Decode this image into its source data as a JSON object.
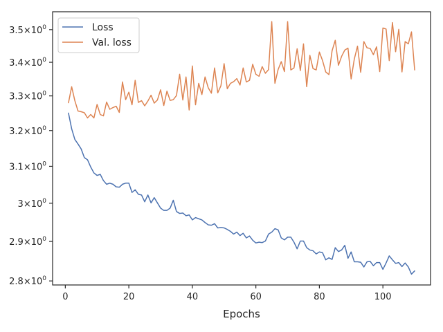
{
  "chart_data": {
    "type": "line",
    "title": "",
    "xlabel": "Epochs",
    "ylabel": "",
    "xlim": [
      -4,
      115
    ],
    "ylim": [
      2.79,
      3.556
    ],
    "y_scale": "log",
    "grid": false,
    "legend": "top-left",
    "x_ticks": [
      0,
      20,
      40,
      60,
      80,
      100
    ],
    "x_tick_labels": [
      "0",
      "20",
      "40",
      "60",
      "80",
      "100"
    ],
    "y_ticks": [
      2.8,
      2.9,
      3.0,
      3.1,
      3.2,
      3.3,
      3.4,
      3.5
    ],
    "y_tick_labels": [
      {
        "mantissa": "2.8",
        "base": "10",
        "exp": "0"
      },
      {
        "mantissa": "2.9",
        "base": "10",
        "exp": "0"
      },
      {
        "mantissa": "3",
        "base": "10",
        "exp": "0"
      },
      {
        "mantissa": "3.1",
        "base": "10",
        "exp": "0"
      },
      {
        "mantissa": "3.2",
        "base": "10",
        "exp": "0"
      },
      {
        "mantissa": "3.3",
        "base": "10",
        "exp": "0"
      },
      {
        "mantissa": "3.4",
        "base": "10",
        "exp": "0"
      },
      {
        "mantissa": "3.5",
        "base": "10",
        "exp": "0"
      }
    ],
    "x": [
      1,
      2,
      3,
      4,
      5,
      6,
      7,
      8,
      9,
      10,
      11,
      12,
      13,
      14,
      15,
      16,
      17,
      18,
      19,
      20,
      21,
      22,
      23,
      24,
      25,
      26,
      27,
      28,
      29,
      30,
      31,
      32,
      33,
      34,
      35,
      36,
      37,
      38,
      39,
      40,
      41,
      42,
      43,
      44,
      45,
      46,
      47,
      48,
      49,
      50,
      51,
      52,
      53,
      54,
      55,
      56,
      57,
      58,
      59,
      60,
      61,
      62,
      63,
      64,
      65,
      66,
      67,
      68,
      69,
      70,
      71,
      72,
      73,
      74,
      75,
      76,
      77,
      78,
      79,
      80,
      81,
      82,
      83,
      84,
      85,
      86,
      87,
      88,
      89,
      90,
      91,
      92,
      93,
      94,
      95,
      96,
      97,
      98,
      99,
      100,
      101,
      102,
      103,
      104,
      105,
      106,
      107,
      108,
      109,
      110
    ],
    "series": [
      {
        "name": "Loss",
        "color": "#4c72b0",
        "values": [
          3.25,
          3.205,
          3.175,
          3.162,
          3.148,
          3.124,
          3.118,
          3.098,
          3.082,
          3.075,
          3.078,
          3.061,
          3.051,
          3.054,
          3.051,
          3.044,
          3.043,
          3.051,
          3.054,
          3.054,
          3.029,
          3.036,
          3.024,
          3.022,
          3.004,
          3.022,
          3.001,
          3.015,
          3.001,
          2.987,
          2.981,
          2.981,
          2.987,
          3.008,
          2.978,
          2.973,
          2.974,
          2.967,
          2.969,
          2.956,
          2.962,
          2.959,
          2.956,
          2.949,
          2.943,
          2.942,
          2.946,
          2.935,
          2.936,
          2.935,
          2.931,
          2.926,
          2.919,
          2.924,
          2.915,
          2.921,
          2.909,
          2.914,
          2.903,
          2.896,
          2.898,
          2.897,
          2.901,
          2.919,
          2.924,
          2.933,
          2.93,
          2.909,
          2.904,
          2.911,
          2.911,
          2.898,
          2.881,
          2.901,
          2.901,
          2.884,
          2.878,
          2.876,
          2.868,
          2.873,
          2.871,
          2.853,
          2.858,
          2.854,
          2.884,
          2.874,
          2.878,
          2.89,
          2.857,
          2.873,
          2.848,
          2.848,
          2.847,
          2.835,
          2.848,
          2.849,
          2.838,
          2.846,
          2.846,
          2.829,
          2.845,
          2.863,
          2.853,
          2.844,
          2.846,
          2.836,
          2.845,
          2.835,
          2.817,
          2.825
        ]
      },
      {
        "name": "Val. loss",
        "color": "#dd8452",
        "values": [
          3.28,
          3.327,
          3.286,
          3.256,
          3.254,
          3.251,
          3.236,
          3.246,
          3.236,
          3.275,
          3.246,
          3.242,
          3.282,
          3.261,
          3.266,
          3.27,
          3.252,
          3.341,
          3.289,
          3.311,
          3.274,
          3.346,
          3.281,
          3.286,
          3.271,
          3.285,
          3.302,
          3.279,
          3.288,
          3.318,
          3.272,
          3.314,
          3.287,
          3.289,
          3.301,
          3.364,
          3.288,
          3.356,
          3.259,
          3.389,
          3.274,
          3.337,
          3.304,
          3.356,
          3.324,
          3.308,
          3.383,
          3.309,
          3.33,
          3.396,
          3.321,
          3.337,
          3.342,
          3.351,
          3.332,
          3.383,
          3.341,
          3.346,
          3.394,
          3.364,
          3.358,
          3.387,
          3.367,
          3.378,
          3.525,
          3.337,
          3.378,
          3.402,
          3.372,
          3.525,
          3.377,
          3.383,
          3.441,
          3.375,
          3.456,
          3.327,
          3.421,
          3.381,
          3.377,
          3.431,
          3.405,
          3.371,
          3.363,
          3.435,
          3.467,
          3.391,
          3.418,
          3.437,
          3.443,
          3.35,
          3.41,
          3.449,
          3.37,
          3.463,
          3.444,
          3.442,
          3.423,
          3.447,
          3.372,
          3.505,
          3.502,
          3.405,
          3.522,
          3.432,
          3.501,
          3.371,
          3.463,
          3.456,
          3.493,
          3.377
        ]
      }
    ]
  }
}
